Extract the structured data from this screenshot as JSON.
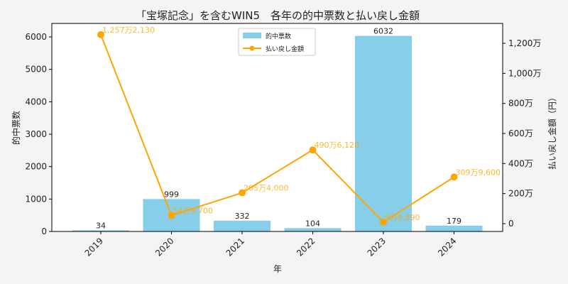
{
  "chart_data": {
    "type": "bar+line",
    "title": "「宝塚記念」を含むWIN5　各年の的中票数と払い戻し金額",
    "xlabel": "年",
    "ylabel_left": "的中票数",
    "ylabel_right": "払い戻し金額（円）",
    "categories": [
      "2019",
      "2020",
      "2021",
      "2022",
      "2023",
      "2024"
    ],
    "series": [
      {
        "name": "的中票数",
        "type": "bar",
        "axis": "left",
        "color": "#87ceeb",
        "values": [
          34,
          999,
          332,
          104,
          6032,
          179
        ],
        "labels": [
          "34",
          "999",
          "332",
          "104",
          "6032",
          "179"
        ]
      },
      {
        "name": "払い戻し金額",
        "type": "line",
        "axis": "right",
        "color": "#ffa500",
        "values": [
          12572130,
          549700,
          2054000,
          4906120,
          99890,
          3099600
        ],
        "labels": [
          "1,257万2,130",
          "54万9,700",
          "205万4,000",
          "490万6,120",
          "9万9,890",
          "309万9,600"
        ]
      }
    ],
    "left_axis": {
      "ylim": [
        0,
        6300
      ],
      "ticks": [
        "0",
        "1000",
        "2000",
        "3000",
        "4000",
        "5000",
        "6000"
      ]
    },
    "right_axis": {
      "ylim": [
        -500000,
        13300000
      ],
      "ticks": [
        "0",
        "200万",
        "400万",
        "600万",
        "800万",
        "1,000万",
        "1,200万"
      ]
    },
    "legend": {
      "position": "upper center",
      "entries": [
        "的中票数",
        "払い戻し金額"
      ]
    },
    "grid": false
  }
}
